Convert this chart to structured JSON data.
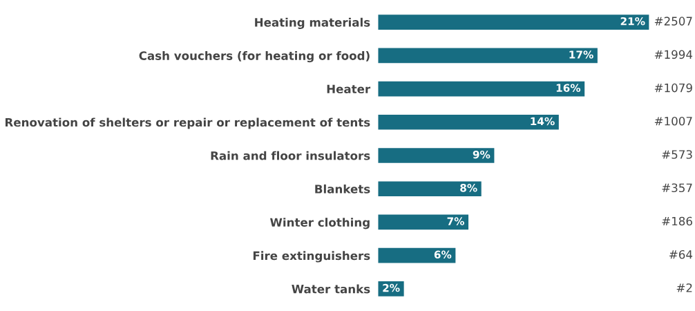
{
  "chart_data": {
    "type": "bar",
    "orientation": "horizontal",
    "categories": [
      "Heating materials",
      "Cash vouchers (for heating or food)",
      "Heater",
      "Renovation of shelters or repair or replacement of tents",
      "Rain and floor insulators",
      "Blankets",
      "Winter clothing",
      "Fire extinguishers",
      "Water tanks"
    ],
    "values": [
      21,
      17,
      16,
      14,
      9,
      8,
      7,
      6,
      2
    ],
    "value_labels": [
      "21%",
      "17%",
      "16%",
      "14%",
      "9%",
      "8%",
      "7%",
      "6%",
      "2%"
    ],
    "color": "#176d82",
    "tick_labels": "y",
    "grid": false,
    "legend": false,
    "annotations": [
      "#2507",
      "#1994",
      "#1079",
      "#1007",
      "#573",
      "#357",
      "#186",
      "#64",
      "#2"
    ]
  }
}
